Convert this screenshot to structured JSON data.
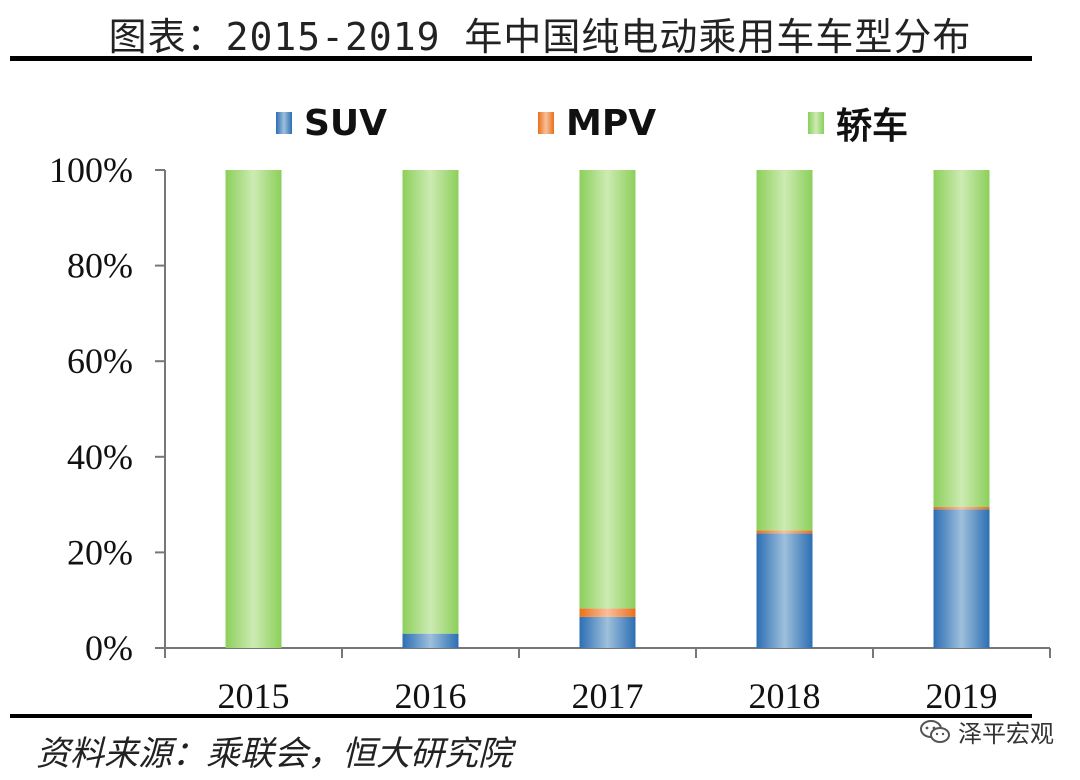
{
  "title": "图表：2015-2019 年中国纯电动乘用车车型分布",
  "source": "资料来源：乘联会，恒大研究院",
  "watermark": {
    "text": "泽平宏观",
    "icon": "wechat-icon"
  },
  "colors": {
    "suv": "#3f7fbf",
    "mpv": "#f0883a",
    "sedan": "#a6d97a"
  },
  "chart_data": {
    "type": "bar",
    "stacked": true,
    "percent": true,
    "categories": [
      "2015",
      "2016",
      "2017",
      "2018",
      "2019"
    ],
    "series": [
      {
        "name": "SUV",
        "values": [
          0,
          3,
          6.5,
          24,
          29
        ]
      },
      {
        "name": "MPV",
        "values": [
          0,
          0,
          1.8,
          0.6,
          0.5
        ]
      },
      {
        "name": "轿车",
        "values": [
          100,
          97,
          91.7,
          75.4,
          70.5
        ]
      }
    ],
    "yticks": [
      "0%",
      "20%",
      "40%",
      "60%",
      "80%",
      "100%"
    ],
    "ylim": [
      0,
      100
    ],
    "legend_position": "top",
    "grid": false
  }
}
